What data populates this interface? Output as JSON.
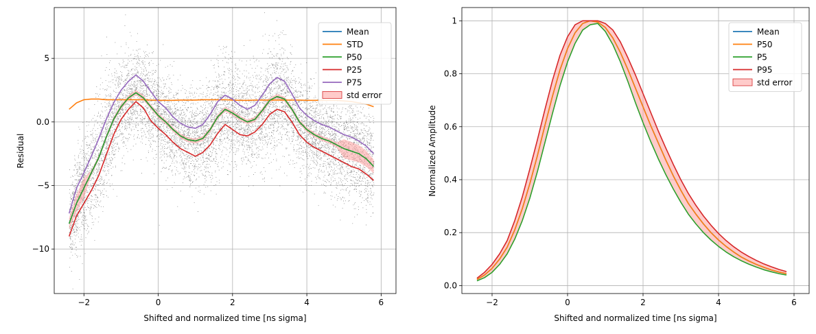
{
  "chart_data": [
    {
      "type": "line",
      "xlabel": "Shifted and normalized time [ns sigma]",
      "ylabel": "Residual",
      "xlim": [
        -2.8,
        6.4
      ],
      "ylim": [
        -13.5,
        9.0
      ],
      "xticks": [
        -2,
        0,
        2,
        4,
        6
      ],
      "yticks": [
        -10,
        -5,
        0,
        5
      ],
      "grid": true,
      "legend_position": "top-right",
      "x": [
        -2.4,
        -2.2,
        -2.0,
        -1.8,
        -1.6,
        -1.4,
        -1.2,
        -1.0,
        -0.8,
        -0.6,
        -0.4,
        -0.2,
        0.0,
        0.2,
        0.4,
        0.6,
        0.8,
        1.0,
        1.2,
        1.4,
        1.6,
        1.8,
        2.0,
        2.2,
        2.4,
        2.6,
        2.8,
        3.0,
        3.2,
        3.4,
        3.6,
        3.8,
        4.0,
        4.2,
        4.4,
        4.6,
        4.8,
        5.0,
        5.2,
        5.4,
        5.6,
        5.8
      ],
      "series": [
        {
          "name": "Mean",
          "color": "#1f77b4",
          "values": [
            -8.0,
            -6.4,
            -5.2,
            -4.0,
            -2.8,
            -1.2,
            0.2,
            1.2,
            1.9,
            2.3,
            1.9,
            1.2,
            0.5,
            0.0,
            -0.6,
            -1.1,
            -1.4,
            -1.5,
            -1.3,
            -0.6,
            0.4,
            1.0,
            0.7,
            0.3,
            0.0,
            0.2,
            0.9,
            1.7,
            2.0,
            1.8,
            1.0,
            0.0,
            -0.6,
            -1.0,
            -1.3,
            -1.5,
            -1.8,
            -2.1,
            -2.3,
            -2.5,
            -2.9,
            -3.5
          ]
        },
        {
          "name": "STD",
          "color": "#ff7f0e",
          "values": [
            1.0,
            1.5,
            1.75,
            1.8,
            1.8,
            1.75,
            1.75,
            1.75,
            1.75,
            1.75,
            1.75,
            1.72,
            1.7,
            1.7,
            1.7,
            1.72,
            1.72,
            1.72,
            1.75,
            1.75,
            1.75,
            1.75,
            1.72,
            1.7,
            1.7,
            1.72,
            1.72,
            1.72,
            1.72,
            1.72,
            1.72,
            1.72,
            1.7,
            1.7,
            1.7,
            1.7,
            1.7,
            1.65,
            1.6,
            1.5,
            1.4,
            1.2
          ]
        },
        {
          "name": "P50",
          "color": "#2ca02c",
          "values": [
            -8.0,
            -6.4,
            -5.2,
            -4.0,
            -2.8,
            -1.2,
            0.2,
            1.2,
            1.9,
            2.3,
            1.9,
            1.2,
            0.5,
            0.0,
            -0.6,
            -1.1,
            -1.4,
            -1.5,
            -1.3,
            -0.6,
            0.4,
            1.0,
            0.7,
            0.3,
            0.0,
            0.2,
            0.9,
            1.7,
            2.0,
            1.8,
            1.0,
            0.0,
            -0.6,
            -1.0,
            -1.3,
            -1.5,
            -1.8,
            -2.1,
            -2.3,
            -2.5,
            -2.9,
            -3.5
          ]
        },
        {
          "name": "P25",
          "color": "#d62728",
          "values": [
            -9.0,
            -7.4,
            -6.4,
            -5.4,
            -4.2,
            -2.6,
            -1.0,
            0.2,
            1.0,
            1.6,
            1.1,
            0.1,
            -0.5,
            -1.0,
            -1.6,
            -2.1,
            -2.4,
            -2.7,
            -2.4,
            -1.8,
            -0.9,
            -0.2,
            -0.6,
            -1.0,
            -1.1,
            -0.8,
            -0.2,
            0.6,
            1.0,
            0.8,
            0.0,
            -1.0,
            -1.6,
            -2.0,
            -2.3,
            -2.6,
            -2.9,
            -3.2,
            -3.5,
            -3.7,
            -4.1,
            -4.6
          ]
        },
        {
          "name": "P75",
          "color": "#9467bd",
          "values": [
            -7.2,
            -5.2,
            -4.0,
            -2.7,
            -1.3,
            0.2,
            1.5,
            2.5,
            3.2,
            3.7,
            3.2,
            2.4,
            1.6,
            1.1,
            0.4,
            -0.1,
            -0.4,
            -0.5,
            -0.2,
            0.6,
            1.6,
            2.1,
            1.8,
            1.3,
            1.0,
            1.3,
            2.1,
            3.0,
            3.5,
            3.2,
            2.2,
            1.1,
            0.5,
            0.1,
            -0.2,
            -0.4,
            -0.7,
            -1.0,
            -1.2,
            -1.5,
            -1.9,
            -2.5
          ]
        }
      ],
      "std_error_band": {
        "name": "std error",
        "color": "#ff9896"
      }
    },
    {
      "type": "line",
      "xlabel": "Shifted and normalized time [ns sigma]",
      "ylabel": "Normalized Amplitude",
      "xlim": [
        -2.8,
        6.4
      ],
      "ylim": [
        -0.03,
        1.05
      ],
      "xticks": [
        -2,
        0,
        2,
        4,
        6
      ],
      "yticks": [
        0.0,
        0.2,
        0.4,
        0.6,
        0.8,
        1.0
      ],
      "grid": true,
      "legend_position": "top-right",
      "x": [
        -2.4,
        -2.2,
        -2.0,
        -1.8,
        -1.6,
        -1.4,
        -1.2,
        -1.0,
        -0.8,
        -0.6,
        -0.4,
        -0.2,
        0.0,
        0.2,
        0.4,
        0.6,
        0.8,
        1.0,
        1.2,
        1.4,
        1.6,
        1.8,
        2.0,
        2.2,
        2.4,
        2.6,
        2.8,
        3.0,
        3.2,
        3.4,
        3.6,
        3.8,
        4.0,
        4.2,
        4.4,
        4.6,
        4.8,
        5.0,
        5.2,
        5.4,
        5.6,
        5.8
      ],
      "series": [
        {
          "name": "Mean",
          "color": "#1f77b4",
          "values": [
            0.023,
            0.04,
            0.065,
            0.1,
            0.145,
            0.21,
            0.29,
            0.385,
            0.49,
            0.605,
            0.715,
            0.815,
            0.895,
            0.955,
            0.99,
            1.0,
            0.995,
            0.975,
            0.935,
            0.88,
            0.815,
            0.745,
            0.675,
            0.605,
            0.54,
            0.475,
            0.415,
            0.36,
            0.31,
            0.27,
            0.233,
            0.2,
            0.172,
            0.148,
            0.127,
            0.108,
            0.093,
            0.08,
            0.069,
            0.059,
            0.051,
            0.045
          ]
        },
        {
          "name": "P50",
          "color": "#ff7f0e",
          "values": [
            0.023,
            0.04,
            0.065,
            0.1,
            0.145,
            0.21,
            0.29,
            0.385,
            0.49,
            0.605,
            0.715,
            0.815,
            0.895,
            0.955,
            0.99,
            1.0,
            0.995,
            0.975,
            0.935,
            0.88,
            0.815,
            0.745,
            0.675,
            0.605,
            0.54,
            0.475,
            0.415,
            0.36,
            0.31,
            0.27,
            0.233,
            0.2,
            0.172,
            0.148,
            0.127,
            0.108,
            0.093,
            0.08,
            0.069,
            0.059,
            0.051,
            0.045
          ]
        },
        {
          "name": "P5",
          "color": "#2ca02c",
          "values": [
            0.018,
            0.03,
            0.05,
            0.08,
            0.12,
            0.175,
            0.245,
            0.33,
            0.43,
            0.54,
            0.65,
            0.755,
            0.845,
            0.915,
            0.965,
            0.985,
            0.99,
            0.96,
            0.91,
            0.845,
            0.77,
            0.69,
            0.615,
            0.545,
            0.48,
            0.42,
            0.365,
            0.315,
            0.27,
            0.233,
            0.2,
            0.172,
            0.148,
            0.127,
            0.109,
            0.094,
            0.081,
            0.07,
            0.06,
            0.052,
            0.045,
            0.04
          ]
        },
        {
          "name": "P95",
          "color": "#d62728",
          "values": [
            0.028,
            0.05,
            0.08,
            0.12,
            0.17,
            0.245,
            0.335,
            0.44,
            0.55,
            0.665,
            0.775,
            0.87,
            0.94,
            0.985,
            1.0,
            1.0,
            1.0,
            0.99,
            0.965,
            0.92,
            0.86,
            0.795,
            0.725,
            0.655,
            0.585,
            0.52,
            0.458,
            0.4,
            0.348,
            0.303,
            0.263,
            0.228,
            0.197,
            0.17,
            0.147,
            0.127,
            0.11,
            0.095,
            0.082,
            0.071,
            0.061,
            0.053
          ]
        }
      ],
      "std_error_band": {
        "name": "std error",
        "color": "#ff9896"
      }
    }
  ]
}
